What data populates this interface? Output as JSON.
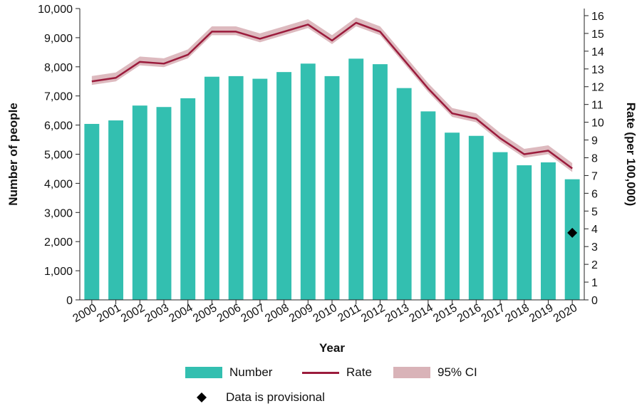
{
  "chart_data": {
    "type": "bar",
    "categories": [
      "2000",
      "2001",
      "2002",
      "2003",
      "2004",
      "2005",
      "2006",
      "2007",
      "2008",
      "2009",
      "2010",
      "2011",
      "2012",
      "2013",
      "2014",
      "2015",
      "2016",
      "2017",
      "2018",
      "2019",
      "2020"
    ],
    "series": [
      {
        "name": "Number",
        "type": "bar",
        "axis": "left",
        "color": "#33bfb0",
        "values": [
          6040,
          6160,
          6670,
          6620,
          6920,
          7660,
          7680,
          7590,
          7820,
          8110,
          7680,
          8280,
          8090,
          7270,
          6470,
          5740,
          5630,
          5070,
          4620,
          4720,
          4140
        ]
      },
      {
        "name": "Rate",
        "type": "line",
        "axis": "right",
        "color": "#9b1b3c",
        "values": [
          12.3,
          12.5,
          13.4,
          13.3,
          13.8,
          15.1,
          15.1,
          14.7,
          15.1,
          15.5,
          14.6,
          15.6,
          15.1,
          13.5,
          11.9,
          10.5,
          10.2,
          9.1,
          8.2,
          8.4,
          7.4
        ]
      },
      {
        "name": "95% CI",
        "type": "band",
        "axis": "right",
        "color": "#d9b3b8",
        "lower": [
          12.1,
          12.3,
          13.2,
          13.1,
          13.6,
          14.9,
          14.9,
          14.5,
          14.9,
          15.3,
          14.4,
          15.4,
          14.9,
          13.3,
          11.7,
          10.3,
          10.0,
          8.9,
          8.0,
          8.2,
          7.2
        ],
        "upper": [
          12.6,
          12.8,
          13.7,
          13.6,
          14.1,
          15.4,
          15.4,
          15.0,
          15.4,
          15.8,
          14.9,
          15.9,
          15.4,
          13.8,
          12.2,
          10.8,
          10.5,
          9.4,
          8.5,
          8.7,
          7.7
        ]
      }
    ],
    "provisional": {
      "category": "2020",
      "value": 2300,
      "label": "Data is provisional"
    },
    "xlabel": "Year",
    "ylabel": "Number of people",
    "y2label": "Rate (per 100,000)",
    "ylim": [
      0,
      10000
    ],
    "y2lim": [
      0,
      16.4
    ],
    "yticks": [
      "0",
      "1,000",
      "2,000",
      "3,000",
      "4,000",
      "5,000",
      "6,000",
      "7,000",
      "8,000",
      "9,000",
      "10,000"
    ],
    "y2ticks": [
      "0",
      "1",
      "2",
      "3",
      "4",
      "5",
      "6",
      "7",
      "8",
      "9",
      "10",
      "11",
      "12",
      "13",
      "14",
      "15",
      "16"
    ],
    "grid": false,
    "legend_position": "bottom"
  }
}
